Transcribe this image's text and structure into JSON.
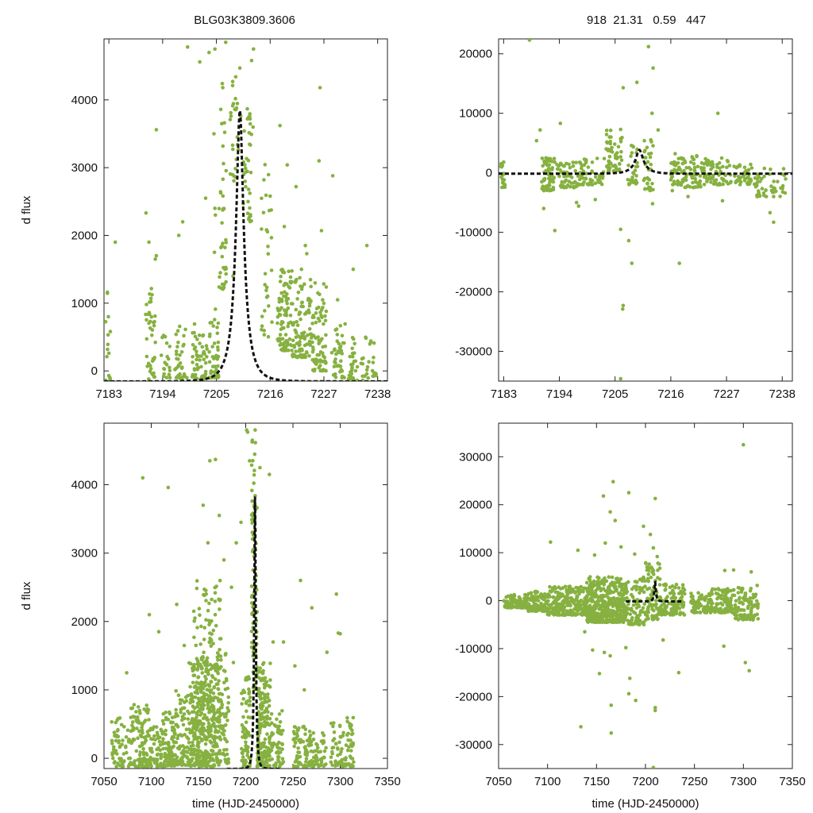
{
  "figure": {
    "title_left": "BLG03K3809.3606",
    "title_right": "918  21.31   0.59   447"
  },
  "colors": {
    "points": "#86b140",
    "model": "#111111",
    "axes": "#222222"
  },
  "chart_data": [
    {
      "id": "top-left",
      "type": "scatter",
      "title": "BLG03K3809.3606",
      "ylabel": "d flux",
      "xlabel": "",
      "xlim": [
        7182,
        7240
      ],
      "ylim": [
        -150,
        4900
      ],
      "xticks": [
        7183,
        7194,
        7205,
        7216,
        7227,
        7238
      ],
      "yticks": [
        0,
        1000,
        2000,
        3000,
        4000
      ],
      "model": {
        "t0": 7209.8,
        "peak": 3850,
        "tE": 2.7,
        "u0": 0.26,
        "base": -155
      },
      "clusters": [
        {
          "x": [
            7182.3,
            7183.3
          ],
          "y": [
            -140,
            1250
          ],
          "n": 14
        },
        {
          "x": [
            7190.5,
            7192.6
          ],
          "y": [
            -120,
            1300
          ],
          "n": 40
        },
        {
          "x": [
            7193.5,
            7195.5
          ],
          "y": [
            -100,
            600
          ],
          "n": 20
        },
        {
          "x": [
            7196.5,
            7199.0
          ],
          "y": [
            -120,
            700
          ],
          "n": 35
        },
        {
          "x": [
            7199.5,
            7203.0
          ],
          "y": [
            -120,
            700
          ],
          "n": 55
        },
        {
          "x": [
            7203.0,
            7205.5
          ],
          "y": [
            -100,
            1000
          ],
          "n": 45
        },
        {
          "x": [
            7205.5,
            7207.0
          ],
          "y": [
            1200,
            3700
          ],
          "n": 35
        },
        {
          "x": [
            7207.8,
            7209.5
          ],
          "y": [
            2800,
            4400
          ],
          "n": 25
        },
        {
          "x": [
            7210.5,
            7212.2
          ],
          "y": [
            2200,
            3900
          ],
          "n": 35
        },
        {
          "x": [
            7214.0,
            7216.5
          ],
          "y": [
            500,
            3100
          ],
          "n": 30
        },
        {
          "x": [
            7217.5,
            7220.5
          ],
          "y": [
            300,
            1500
          ],
          "n": 90
        },
        {
          "x": [
            7220.5,
            7224.5
          ],
          "y": [
            200,
            1400
          ],
          "n": 100
        },
        {
          "x": [
            7224.5,
            7227.5
          ],
          "y": [
            0,
            1300
          ],
          "n": 80
        },
        {
          "x": [
            7228.5,
            7231.5
          ],
          "y": [
            -100,
            800
          ],
          "n": 40
        },
        {
          "x": [
            7232.0,
            7237.8
          ],
          "y": [
            -140,
            500
          ],
          "n": 55
        }
      ],
      "points": [
        [
          7199.1,
          4780
        ],
        [
          7204.7,
          4750
        ],
        [
          7206.9,
          4850
        ],
        [
          7206.2,
          4240
        ],
        [
          7206.3,
          4180
        ],
        [
          7212.6,
          4750
        ],
        [
          7212.2,
          4580
        ],
        [
          7209.8,
          4470
        ],
        [
          7203.5,
          4700
        ],
        [
          7201.6,
          4560
        ],
        [
          7211.9,
          3720
        ],
        [
          7210.0,
          3760
        ],
        [
          7212.5,
          3600
        ],
        [
          7218.0,
          3620
        ],
        [
          7192.7,
          3560
        ],
        [
          7204.5,
          3500
        ],
        [
          7205.9,
          3860
        ],
        [
          7206.1,
          3650
        ],
        [
          7226.2,
          4180
        ],
        [
          7226.0,
          3100
        ],
        [
          7228.8,
          2880
        ],
        [
          7219.5,
          3040
        ],
        [
          7221.3,
          2720
        ],
        [
          7190.6,
          2330
        ],
        [
          7191.2,
          1900
        ],
        [
          7192.7,
          1700
        ],
        [
          7192.5,
          1650
        ],
        [
          7197.3,
          2000
        ],
        [
          7198.1,
          2200
        ],
        [
          7202.8,
          2550
        ],
        [
          7204.7,
          2400
        ],
        [
          7204.8,
          2300
        ],
        [
          7204.6,
          1750
        ],
        [
          7216.0,
          2580
        ],
        [
          7218.9,
          2130
        ],
        [
          7223.2,
          1850
        ],
        [
          7223.5,
          1730
        ],
        [
          7222.4,
          1500
        ],
        [
          7235.8,
          1850
        ],
        [
          7226.5,
          2070
        ],
        [
          7229.8,
          1050
        ],
        [
          7208.4,
          1400
        ],
        [
          7233.0,
          1500
        ],
        [
          7184.3,
          1900
        ]
      ]
    },
    {
      "id": "top-right",
      "type": "scatter",
      "title": "918  21.31   0.59   447",
      "ylabel": "",
      "xlabel": "",
      "xlim": [
        7182,
        7240
      ],
      "ylim": [
        -35000,
        22500
      ],
      "xticks": [
        7183,
        7194,
        7205,
        7216,
        7227,
        7238
      ],
      "yticks": [
        -30000,
        -20000,
        -10000,
        0,
        10000,
        20000
      ],
      "model": {
        "t0": 7209.8,
        "peak": 3850,
        "tE": 2.7,
        "u0": 0.26,
        "base": -155
      },
      "clusters": [
        {
          "x": [
            7182.3,
            7183.3
          ],
          "y": [
            -2500,
            1800
          ],
          "n": 20
        },
        {
          "x": [
            7190.5,
            7193.0
          ],
          "y": [
            -3000,
            2500
          ],
          "n": 60
        },
        {
          "x": [
            7193.0,
            7198.0
          ],
          "y": [
            -2500,
            2000
          ],
          "n": 60
        },
        {
          "x": [
            7198.0,
            7203.0
          ],
          "y": [
            -2000,
            2500
          ],
          "n": 60
        },
        {
          "x": [
            7203.0,
            7206.5
          ],
          "y": [
            0,
            7500
          ],
          "n": 55
        },
        {
          "x": [
            7207.5,
            7209.5
          ],
          "y": [
            -2000,
            5000
          ],
          "n": 30
        },
        {
          "x": [
            7210.5,
            7212.5
          ],
          "y": [
            -3000,
            6000
          ],
          "n": 35
        },
        {
          "x": [
            7216.0,
            7218.0
          ],
          "y": [
            -2000,
            3500
          ],
          "n": 30
        },
        {
          "x": [
            7218.0,
            7222.0
          ],
          "y": [
            -2500,
            3000
          ],
          "n": 60
        },
        {
          "x": [
            7222.0,
            7228.0
          ],
          "y": [
            -2000,
            2500
          ],
          "n": 70
        },
        {
          "x": [
            7228.5,
            7232.0
          ],
          "y": [
            -2000,
            1500
          ],
          "n": 40
        },
        {
          "x": [
            7232.5,
            7239.0
          ],
          "y": [
            -4000,
            1000
          ],
          "n": 50
        }
      ],
      "points": [
        [
          7188.1,
          22300
        ],
        [
          7211.6,
          21200
        ],
        [
          7206.6,
          14300
        ],
        [
          7209.3,
          15200
        ],
        [
          7212.5,
          17600
        ],
        [
          7212.3,
          10000
        ],
        [
          7190.2,
          7200
        ],
        [
          7194.2,
          8300
        ],
        [
          7189.5,
          5400
        ],
        [
          7225.3,
          10000
        ],
        [
          7213.5,
          7200
        ],
        [
          7190.9,
          -6000
        ],
        [
          7197.4,
          -5000
        ],
        [
          7201.1,
          -4500
        ],
        [
          7193.1,
          -9700
        ],
        [
          7197.8,
          -5600
        ],
        [
          7206.1,
          -9500
        ],
        [
          7207.7,
          -11400
        ],
        [
          7208.3,
          -15200
        ],
        [
          7206.6,
          -22300
        ],
        [
          7206.5,
          -22900
        ],
        [
          7206.1,
          -34600
        ],
        [
          7217.7,
          -15200
        ],
        [
          7219.4,
          -4000
        ],
        [
          7236.3,
          -8300
        ],
        [
          7235.6,
          -6700
        ],
        [
          7212.4,
          -5200
        ],
        [
          7216.3,
          -3000
        ],
        [
          7226.2,
          -4700
        ]
      ]
    },
    {
      "id": "bottom-left",
      "type": "scatter",
      "title": "",
      "ylabel": "d flux",
      "xlabel": "time (HJD-2450000)",
      "xlim": [
        7050,
        7350
      ],
      "ylim": [
        -150,
        4900
      ],
      "xticks": [
        7050,
        7100,
        7150,
        7200,
        7250,
        7300,
        7350
      ],
      "yticks": [
        0,
        1000,
        2000,
        3000,
        4000
      ],
      "model": {
        "t0": 7209.8,
        "peak": 3850,
        "tE": 2.7,
        "u0": 0.26,
        "base": -155,
        "xrange": [
          7180,
          7238
        ]
      },
      "clusters": [
        {
          "x": [
            7058,
            7078
          ],
          "y": [
            -120,
            600
          ],
          "n": 60
        },
        {
          "x": [
            7078,
            7098
          ],
          "y": [
            -120,
            800
          ],
          "n": 120
        },
        {
          "x": [
            7098,
            7112
          ],
          "y": [
            -120,
            500
          ],
          "n": 60
        },
        {
          "x": [
            7112,
            7125
          ],
          "y": [
            -120,
            700
          ],
          "n": 90
        },
        {
          "x": [
            7125,
            7140
          ],
          "y": [
            -100,
            1000
          ],
          "n": 80
        },
        {
          "x": [
            7140,
            7168
          ],
          "y": [
            -120,
            1500
          ],
          "n": 300
        },
        {
          "x": [
            7145,
            7175
          ],
          "y": [
            300,
            2600
          ],
          "n": 150
        },
        {
          "x": [
            7168,
            7182
          ],
          "y": [
            -100,
            1600
          ],
          "n": 90
        },
        {
          "x": [
            7195,
            7205
          ],
          "y": [
            -120,
            1200
          ],
          "n": 70
        },
        {
          "x": [
            7206,
            7212
          ],
          "y": [
            1000,
            4700
          ],
          "n": 100
        },
        {
          "x": [
            7212,
            7226
          ],
          "y": [
            -120,
            1400
          ],
          "n": 180
        },
        {
          "x": [
            7227,
            7240
          ],
          "y": [
            -120,
            700
          ],
          "n": 60
        },
        {
          "x": [
            7250,
            7268
          ],
          "y": [
            -120,
            500
          ],
          "n": 70
        },
        {
          "x": [
            7268,
            7285
          ],
          "y": [
            -120,
            400
          ],
          "n": 50
        },
        {
          "x": [
            7290,
            7315
          ],
          "y": [
            -120,
            600
          ],
          "n": 90
        }
      ],
      "points": [
        [
          7091,
          4100
        ],
        [
          7118,
          3960
        ],
        [
          7162,
          4350
        ],
        [
          7168,
          4370
        ],
        [
          7155,
          3700
        ],
        [
          7172,
          3550
        ],
        [
          7160,
          3150
        ],
        [
          7098,
          2100
        ],
        [
          7108,
          1850
        ],
        [
          7258,
          2600
        ],
        [
          7296,
          2400
        ],
        [
          7298,
          1830
        ],
        [
          7300,
          1820
        ],
        [
          7074,
          1250
        ],
        [
          7187,
          1400
        ],
        [
          7240,
          1700
        ],
        [
          7252,
          1350
        ],
        [
          7262,
          1000
        ],
        [
          7270,
          2200
        ],
        [
          7286,
          1550
        ],
        [
          7201,
          4800
        ],
        [
          7202,
          4770
        ],
        [
          7210,
          4800
        ],
        [
          7207,
          4650
        ],
        [
          7215,
          4250
        ],
        [
          7225,
          4150
        ],
        [
          7204,
          4350
        ],
        [
          7185,
          2500
        ],
        [
          7190,
          3150
        ],
        [
          7195,
          3450
        ],
        [
          7177,
          2900
        ],
        [
          7145,
          2150
        ],
        [
          7135,
          1650
        ],
        [
          7127,
          2250
        ],
        [
          7229,
          1700
        ]
      ]
    },
    {
      "id": "bottom-right",
      "type": "scatter",
      "title": "",
      "ylabel": "",
      "xlabel": "time (HJD-2450000)",
      "xlim": [
        7050,
        7350
      ],
      "ylim": [
        -35000,
        37000
      ],
      "xticks": [
        7050,
        7100,
        7150,
        7200,
        7250,
        7300,
        7350
      ],
      "yticks": [
        -30000,
        -20000,
        -10000,
        0,
        10000,
        20000,
        30000
      ],
      "model": {
        "t0": 7209.8,
        "peak": 3850,
        "tE": 2.7,
        "u0": 0.26,
        "base": -155,
        "xrange": [
          7180,
          7238
        ]
      },
      "clusters": [
        {
          "x": [
            7055,
            7080
          ],
          "y": [
            -1500,
            1300
          ],
          "n": 90
        },
        {
          "x": [
            7080,
            7100
          ],
          "y": [
            -2200,
            2000
          ],
          "n": 100
        },
        {
          "x": [
            7100,
            7140
          ],
          "y": [
            -3000,
            3000
          ],
          "n": 250
        },
        {
          "x": [
            7140,
            7180
          ],
          "y": [
            -4500,
            5000
          ],
          "n": 450
        },
        {
          "x": [
            7180,
            7200
          ],
          "y": [
            -5000,
            5000
          ],
          "n": 90
        },
        {
          "x": [
            7200,
            7215
          ],
          "y": [
            -4000,
            8000
          ],
          "n": 90
        },
        {
          "x": [
            7215,
            7240
          ],
          "y": [
            -3000,
            3500
          ],
          "n": 110
        },
        {
          "x": [
            7246,
            7268
          ],
          "y": [
            -2500,
            2000
          ],
          "n": 90
        },
        {
          "x": [
            7268,
            7290
          ],
          "y": [
            -2500,
            2500
          ],
          "n": 90
        },
        {
          "x": [
            7290,
            7315
          ],
          "y": [
            -4000,
            3500
          ],
          "n": 100
        }
      ],
      "points": [
        [
          7167,
          37500
        ],
        [
          7300,
          32500
        ],
        [
          7167,
          24800
        ],
        [
          7157,
          21800
        ],
        [
          7183,
          22500
        ],
        [
          7210,
          21300
        ],
        [
          7164,
          18500
        ],
        [
          7169,
          16700
        ],
        [
          7198,
          15500
        ],
        [
          7205,
          13800
        ],
        [
          7208,
          11000
        ],
        [
          7212,
          9200
        ],
        [
          7103,
          12200
        ],
        [
          7131,
          10500
        ],
        [
          7148,
          9500
        ],
        [
          7159,
          12000
        ],
        [
          7175,
          11200
        ],
        [
          7189,
          9700
        ],
        [
          7281,
          6300
        ],
        [
          7290,
          6400
        ],
        [
          7308,
          6000
        ],
        [
          7138,
          -6500
        ],
        [
          7146,
          -10300
        ],
        [
          7158,
          -10800
        ],
        [
          7164,
          -11500
        ],
        [
          7180,
          -9800
        ],
        [
          7184,
          -16200
        ],
        [
          7153,
          -15200
        ],
        [
          7183,
          -19400
        ],
        [
          7190,
          -20800
        ],
        [
          7210,
          -22300
        ],
        [
          7210,
          -22900
        ],
        [
          7165,
          -21800
        ],
        [
          7165,
          -27600
        ],
        [
          7134,
          -26300
        ],
        [
          7208,
          -34800
        ],
        [
          7302,
          -12900
        ],
        [
          7306,
          -14600
        ],
        [
          7234,
          -15000
        ],
        [
          7280,
          -9500
        ],
        [
          7218,
          -8200
        ]
      ]
    }
  ]
}
